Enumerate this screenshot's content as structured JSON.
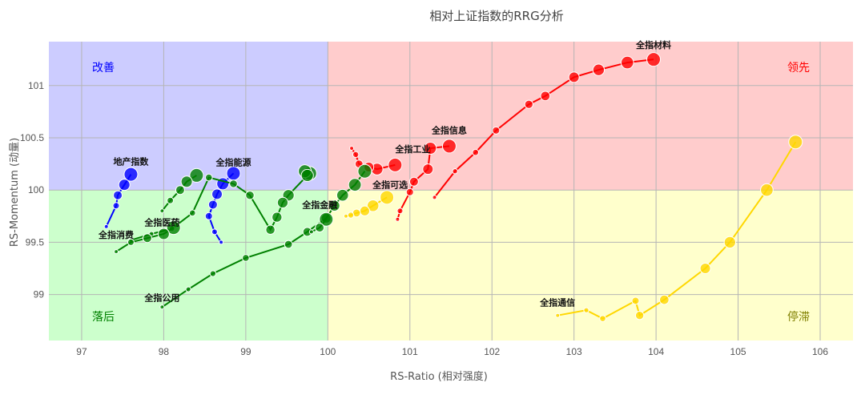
{
  "chart_data": {
    "type": "scatter",
    "title": "相对上证指数的RRG分析",
    "xlabel": "RS-Ratio (相对强度)",
    "ylabel": "RS-Momentum (动量)",
    "xlim": [
      96.6,
      106.4
    ],
    "ylim": [
      98.56,
      101.42
    ],
    "x_ticks": [
      97,
      98,
      99,
      100,
      101,
      102,
      103,
      104,
      105,
      106
    ],
    "y_ticks": [
      99,
      99.5,
      100,
      100.5,
      101
    ],
    "center": [
      100,
      100
    ],
    "grid": true,
    "quadrants": [
      {
        "name": "改善",
        "color": "#0000ff",
        "fill": "#ccccff"
      },
      {
        "name": "领先",
        "color": "#ff0000",
        "fill": "#ffcccc"
      },
      {
        "name": "落后",
        "color": "#008000",
        "fill": "#ccffcc"
      },
      {
        "name": "停滞",
        "color": "#808000",
        "fill": "#ffffcc"
      }
    ],
    "series": [
      {
        "name": "地产指数",
        "color": "#0000ff",
        "x": [
          97.6,
          97.52,
          97.44,
          97.42,
          97.3
        ],
        "y": [
          100.15,
          100.05,
          99.95,
          99.85,
          99.65
        ]
      },
      {
        "name": "全指能源",
        "color": "#0000ff",
        "x": [
          98.85,
          98.72,
          98.65,
          98.6,
          98.55,
          98.62,
          98.7
        ],
        "y": [
          100.16,
          100.06,
          99.96,
          99.86,
          99.75,
          99.6,
          99.5
        ]
      },
      {
        "name": "全指材料",
        "color": "#ff0000",
        "x": [
          103.97,
          103.65,
          103.3,
          103.0,
          102.65,
          102.45,
          102.05,
          101.8,
          101.55,
          101.3
        ],
        "y": [
          101.25,
          101.22,
          101.15,
          101.08,
          100.9,
          100.82,
          100.57,
          100.36,
          100.18,
          99.93
        ]
      },
      {
        "name": "全指信息",
        "color": "#ff0000",
        "x": [
          101.48,
          101.25,
          101.22,
          101.05,
          101.0,
          100.88,
          100.85
        ],
        "y": [
          100.42,
          100.4,
          100.2,
          100.08,
          99.98,
          99.8,
          99.72
        ]
      },
      {
        "name": "全指工业",
        "color": "#ff0000",
        "x": [
          100.82,
          100.6,
          100.5,
          100.38,
          100.34,
          100.29
        ],
        "y": [
          100.24,
          100.2,
          100.22,
          100.25,
          100.34,
          100.4
        ]
      },
      {
        "name": "全指可选",
        "color": "#ffd700",
        "x": [
          100.72,
          100.55,
          100.45,
          100.35,
          100.28,
          100.22
        ],
        "y": [
          99.93,
          99.85,
          99.8,
          99.78,
          99.76,
          99.75
        ]
      },
      {
        "name": "全指通信",
        "color": "#ffd700",
        "x": [
          105.7,
          105.35,
          104.9,
          104.6,
          104.1,
          103.8,
          103.75,
          103.35,
          103.15,
          102.8
        ],
        "y": [
          100.46,
          100.0,
          99.5,
          99.25,
          98.95,
          98.8,
          98.94,
          98.77,
          98.85,
          98.8
        ]
      },
      {
        "name": "全指金融",
        "color": "#008000",
        "x": [
          99.78,
          99.72,
          99.75,
          99.52,
          99.45,
          99.38,
          99.3,
          99.05,
          98.85,
          98.55,
          98.35,
          98.1,
          97.85,
          97.6
        ],
        "y": [
          100.16,
          100.18,
          100.14,
          99.95,
          99.88,
          99.74,
          99.62,
          99.95,
          100.06,
          100.12,
          99.78,
          99.63,
          99.58,
          99.52
        ]
      },
      {
        "name": "全指医药",
        "color": "#008000",
        "x": [
          98.4,
          98.28,
          98.2,
          98.08,
          97.98
        ],
        "y": [
          100.14,
          100.08,
          100.0,
          99.9,
          99.8
        ]
      },
      {
        "name": "全指消费",
        "color": "#008000",
        "x": [
          98.12,
          98.0,
          97.8,
          97.6,
          97.42
        ],
        "y": [
          99.64,
          99.58,
          99.54,
          99.5,
          99.41
        ]
      },
      {
        "name": "全指公用",
        "color": "#008000",
        "x": [
          100.45,
          100.33,
          100.18,
          100.08,
          99.98,
          99.75,
          99.52,
          99.0,
          98.6,
          98.3,
          97.98
        ],
        "y": [
          100.18,
          100.05,
          99.95,
          99.85,
          99.73,
          99.6,
          99.48,
          99.35,
          99.2,
          99.05,
          98.88
        ]
      },
      {
        "name": "全指金融b",
        "color": "#008000",
        "x": [
          99.98,
          99.9,
          99.8
        ],
        "y": [
          99.72,
          99.64,
          99.6
        ]
      }
    ],
    "labels": [
      {
        "text": "全指材料",
        "series": 2
      },
      {
        "text": "全指信息",
        "series": 3
      },
      {
        "text": "全指工业",
        "series": 4
      },
      {
        "text": "地产指数",
        "series": 0
      },
      {
        "text": "全指能源",
        "series": 1
      },
      {
        "text": "全指可选",
        "series": 5
      },
      {
        "text": "全指金融",
        "series": 11
      },
      {
        "text": "全指医药",
        "series": 8
      },
      {
        "text": "全指消费",
        "series": 9
      },
      {
        "text": "全指公用",
        "series": 10
      },
      {
        "text": "全指通信",
        "series": 6
      }
    ]
  }
}
